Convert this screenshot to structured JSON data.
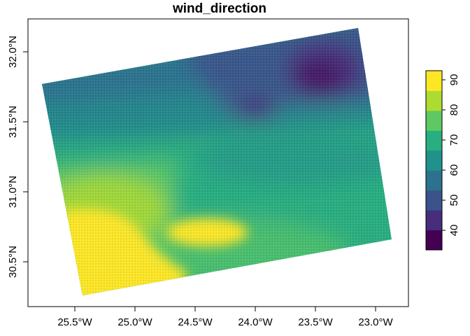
{
  "title": "wind_direction",
  "x_axis": {
    "ticks": [
      {
        "value": -25.5,
        "label": "25.5°W"
      },
      {
        "value": -25.0,
        "label": "25.0°W"
      },
      {
        "value": -24.5,
        "label": "24.5°W"
      },
      {
        "value": -24.0,
        "label": "24.0°W"
      },
      {
        "value": -23.5,
        "label": "23.5°W"
      },
      {
        "value": -23.0,
        "label": "23.0°W"
      }
    ]
  },
  "y_axis": {
    "ticks": [
      {
        "value": 32.0,
        "label": "32.0°N"
      },
      {
        "value": 31.5,
        "label": "31.5°N"
      },
      {
        "value": 31.0,
        "label": "31.0°N"
      },
      {
        "value": 30.5,
        "label": "30.5°N"
      }
    ]
  },
  "legend": {
    "breaks": [
      {
        "value": 40,
        "label": "40"
      },
      {
        "value": 50,
        "label": "50"
      },
      {
        "value": 60,
        "label": "60"
      },
      {
        "value": 70,
        "label": "70"
      },
      {
        "value": 80,
        "label": "80"
      },
      {
        "value": 90,
        "label": "90"
      }
    ],
    "colors": [
      "#440154",
      "#472d7b",
      "#3b528b",
      "#2c728e",
      "#21918c",
      "#28ae80",
      "#5ec962",
      "#addc30",
      "#fde725"
    ]
  },
  "raster": {
    "palette": {
      "dark_purple": "#440154",
      "purple": "#472d7b",
      "navy": "#3b528b",
      "blue_teal": "#2c728e",
      "teal": "#21918c",
      "green_teal": "#28ae80",
      "green": "#5ec962",
      "yellow_green": "#addc30",
      "yellow": "#fde725"
    }
  }
}
